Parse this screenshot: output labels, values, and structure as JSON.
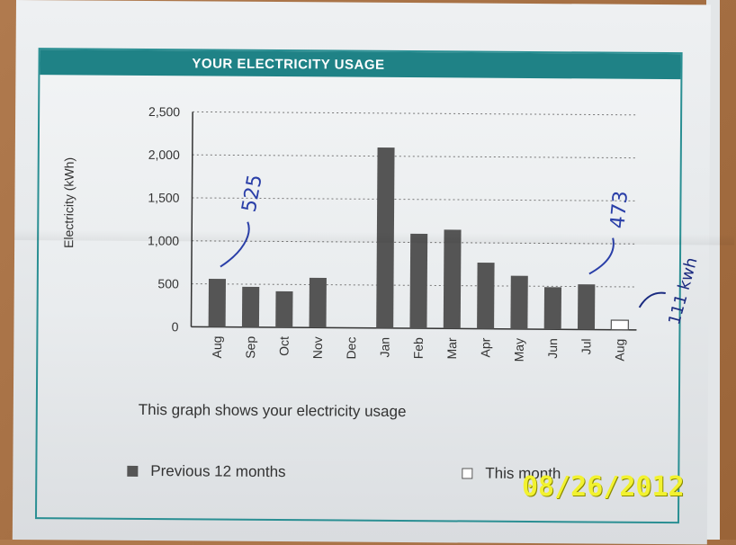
{
  "header": {
    "title": "YOUR ELECTRICITY USAGE"
  },
  "caption": "This graph shows your electricity usage",
  "legend": [
    {
      "label": "Previous 12 months",
      "color": "#555555",
      "filled": true
    },
    {
      "label": "This month",
      "color": "#ffffff",
      "filled": false
    }
  ],
  "photo_timestamp": "08/26/2012",
  "annotations": [
    {
      "text": "525",
      "near": "Aug"
    },
    {
      "text": "473",
      "near": "Jul"
    },
    {
      "text": "111 kwh",
      "near": "Aug (this month)"
    }
  ],
  "chart_data": {
    "type": "bar",
    "title": "YOUR ELECTRICITY USAGE",
    "ylabel": "Electricity (kWh)",
    "xlabel": "",
    "ylim": [
      0,
      2500
    ],
    "yticks": [
      "0",
      "500",
      "1,000",
      "1,500",
      "2,000",
      "2,500"
    ],
    "ytick_values": [
      0,
      500,
      1000,
      1500,
      2000,
      2500
    ],
    "grid": true,
    "categories": [
      "Aug",
      "Sep",
      "Oct",
      "Nov",
      "Dec",
      "Jan",
      "Feb",
      "Mar",
      "Apr",
      "May",
      "Jun",
      "Jul",
      "Aug"
    ],
    "series": [
      {
        "name": "Previous 12 months",
        "values": [
          560,
          470,
          420,
          580,
          0,
          2100,
          1100,
          1150,
          770,
          620,
          490,
          525,
          null
        ]
      },
      {
        "name": "This month",
        "values": [
          null,
          null,
          null,
          null,
          null,
          null,
          null,
          null,
          null,
          null,
          null,
          null,
          111
        ]
      }
    ],
    "bar_color": "#555555",
    "current_fill": "#ffffff"
  }
}
